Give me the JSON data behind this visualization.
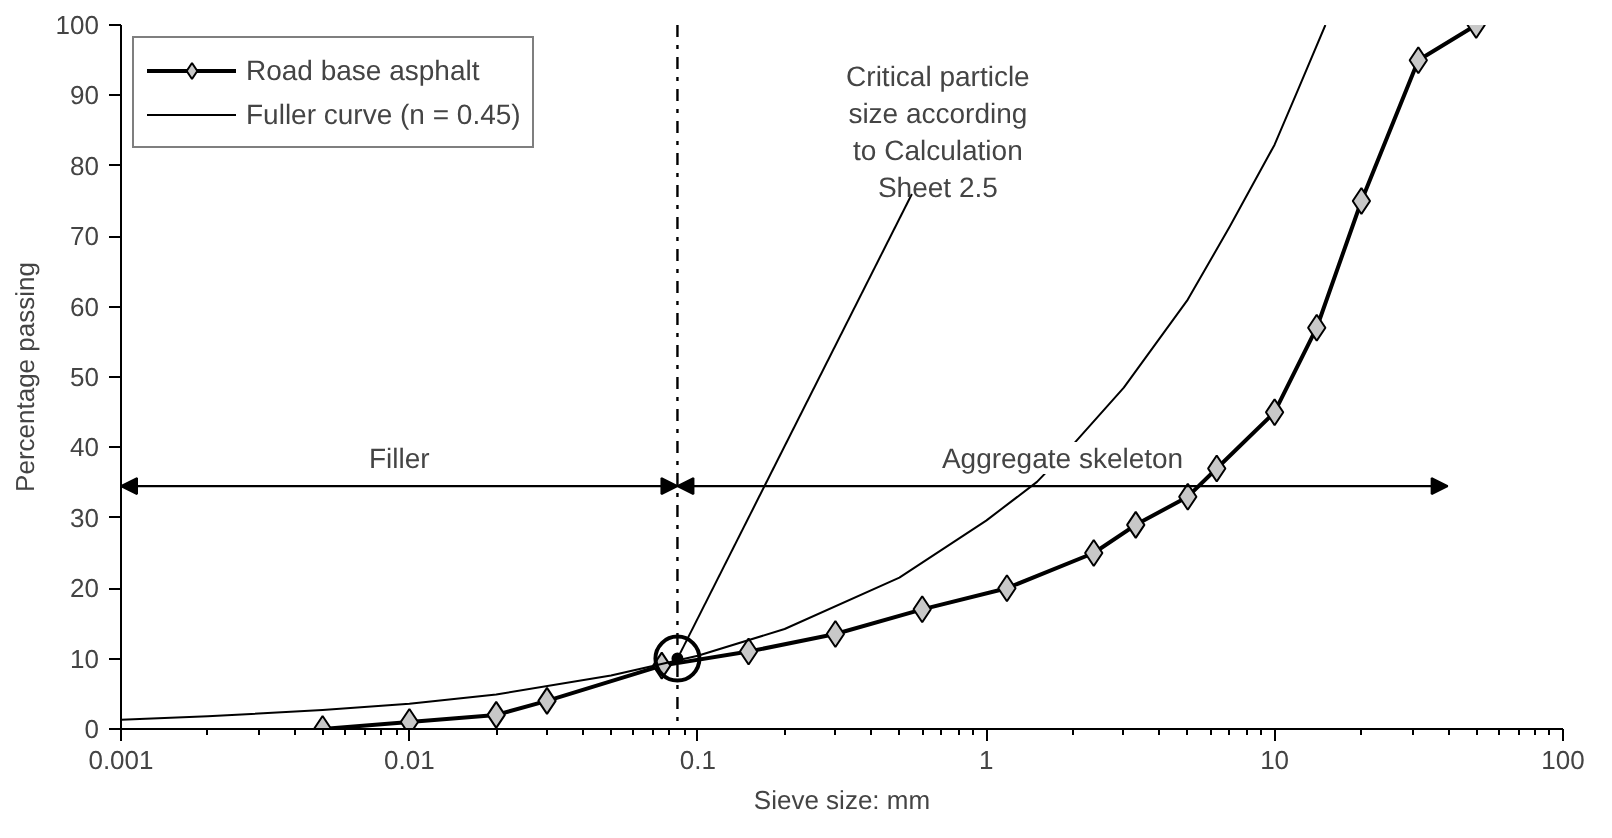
{
  "chart_data": {
    "type": "line",
    "xlabel": "Sieve size: mm",
    "ylabel": "Percentage passing",
    "log": "x",
    "xlim": [
      0.001,
      100
    ],
    "ylim": [
      0,
      100
    ],
    "xticks": [
      0.001,
      0.01,
      0.1,
      1,
      10,
      100
    ],
    "yticks": [
      0,
      10,
      20,
      30,
      40,
      50,
      60,
      70,
      80,
      90,
      100
    ],
    "grid": false,
    "legend": "top left",
    "series": [
      {
        "name": "Road base asphalt",
        "color": "#000000",
        "marker": "diamond",
        "x": [
          0.005,
          0.01,
          0.02,
          0.03,
          0.075,
          0.15,
          0.3,
          0.6,
          1.18,
          2.36,
          3.3,
          5,
          6.3,
          10,
          14,
          20,
          31.5,
          50
        ],
        "values": [
          0,
          1,
          2,
          4,
          9,
          11,
          13.5,
          17,
          20,
          25,
          29,
          33,
          37,
          45,
          57,
          75,
          95,
          100
        ]
      },
      {
        "name": "Fuller curve (n = 0.45)",
        "color": "#000000",
        "marker": "none",
        "x": [
          0.001,
          0.002,
          0.005,
          0.01,
          0.02,
          0.05,
          0.1,
          0.2,
          0.5,
          1,
          1.5,
          2,
          3,
          5,
          7,
          10,
          12,
          15
        ],
        "values": [
          1.3,
          1.8,
          2.7,
          3.6,
          4.9,
          7.6,
          10.4,
          14.2,
          21.5,
          29.6,
          35.1,
          40.4,
          48.5,
          61,
          71.4,
          83,
          90.6,
          100
        ]
      }
    ],
    "ref_lines": [
      {
        "axis": "x",
        "value": 0.085,
        "line_style": "dashdot"
      }
    ],
    "annotations": [
      {
        "text": "Critical particle\nsize according\nto Calculation\nSheet 2.5",
        "x": 0.085,
        "y": 10
      },
      "Filler",
      "Aggregate skeleton"
    ]
  }
}
